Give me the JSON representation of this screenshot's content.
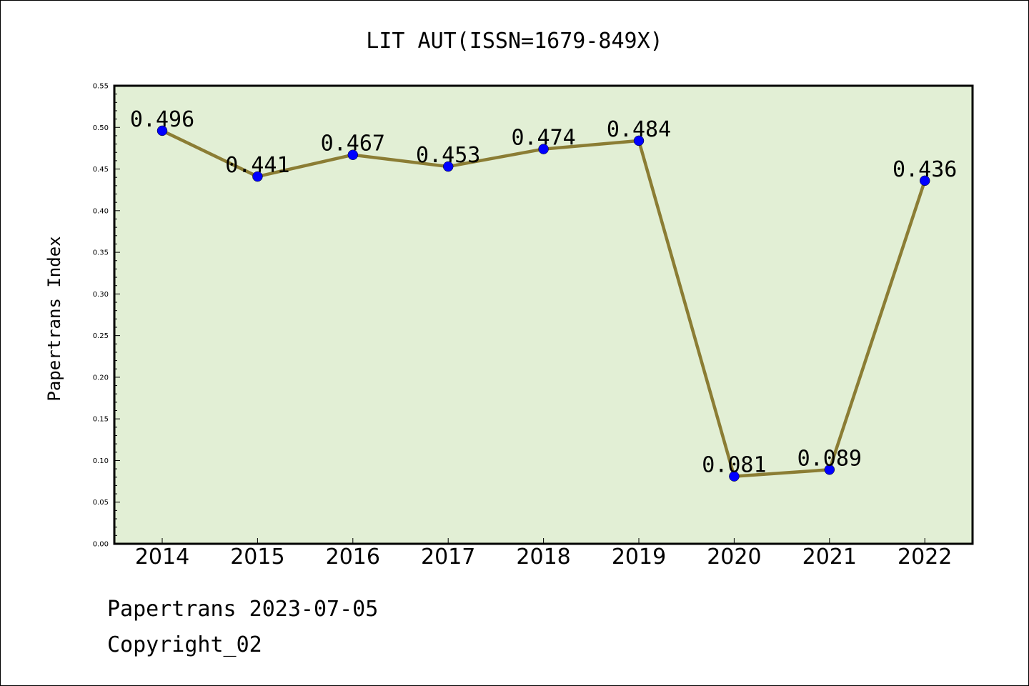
{
  "chart_data": {
    "type": "line",
    "title": "LIT AUT(ISSN=1679-849X)",
    "xlabel": "",
    "ylabel": "Papertrans Index",
    "categories": [
      "2014",
      "2015",
      "2016",
      "2017",
      "2018",
      "2019",
      "2020",
      "2021",
      "2022"
    ],
    "values": [
      0.496,
      0.441,
      0.467,
      0.453,
      0.474,
      0.484,
      0.081,
      0.089,
      0.436
    ],
    "data_labels": [
      "0.496",
      "0.441",
      "0.467",
      "0.453",
      "0.474",
      "0.484",
      "0.081",
      "0.089",
      "0.436"
    ],
    "ylim": [
      0.0,
      0.55
    ],
    "yticks": [
      "0.00",
      "0.05",
      "0.10",
      "0.15",
      "0.20",
      "0.25",
      "0.30",
      "0.35",
      "0.40",
      "0.45",
      "0.50",
      "0.55"
    ],
    "grid": false,
    "colors": {
      "plot_background": "#e2efd5",
      "line": "#8b7d34",
      "marker": "#0000ff"
    }
  },
  "footer": {
    "line1": "Papertrans 2023-07-05",
    "line2": "Copyright_02"
  }
}
